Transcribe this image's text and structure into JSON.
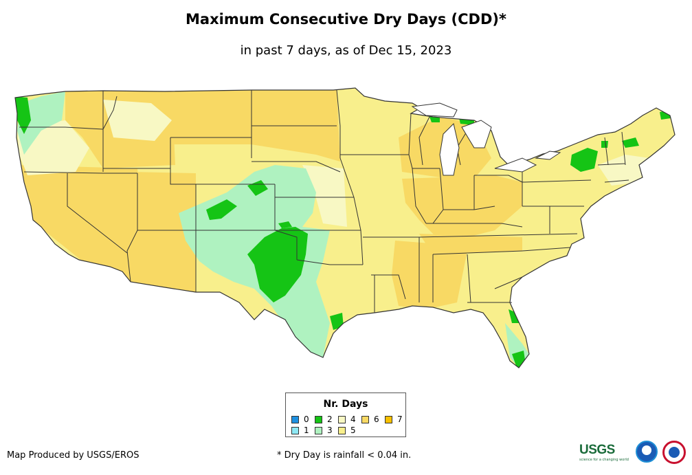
{
  "title": "Maximum Consecutive Dry Days (CDD)*",
  "subtitle": "in past 7 days, as of Dec 15, 2023",
  "legend": {
    "title": "Nr. Days",
    "items": [
      {
        "label": "0",
        "color": "#1e90e0"
      },
      {
        "label": "1",
        "color": "#8ee8f4"
      },
      {
        "label": "2",
        "color": "#15c415"
      },
      {
        "label": "3",
        "color": "#aff2c0"
      },
      {
        "label": "4",
        "color": "#f8f8c4"
      },
      {
        "label": "5",
        "color": "#f8ef8c"
      },
      {
        "label": "6",
        "color": "#f8d964"
      },
      {
        "label": "7",
        "color": "#f8c000"
      }
    ]
  },
  "credit": "Map Produced by USGS/EROS",
  "footnote": "* Dry Day is rainfall < 0.04 in.",
  "logos": {
    "usgs": "USGS",
    "usgs_tagline": "science for a changing world",
    "noaa_icon": "noaa-logo-icon",
    "nws_icon": "nws-logo-icon"
  }
}
